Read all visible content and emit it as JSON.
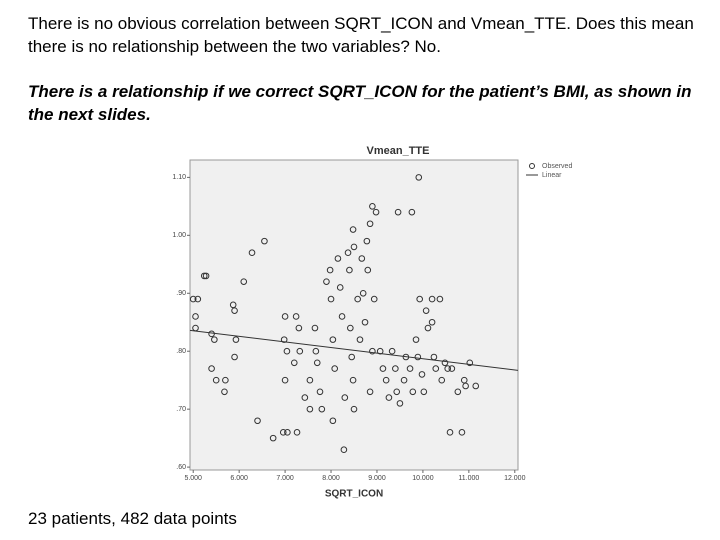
{
  "slide": {
    "paragraphs": [
      "There is no obvious correlation between SQRT_ICON and Vmean_TTE. Does this mean there is no relationship between the two variables? No.",
      "There is a relationship if we correct SQRT_ICON for the patient’s BMI, as shown in the next slides."
    ],
    "footer": "23 patients, 482 data points"
  },
  "chart_data": {
    "type": "scatter",
    "title": "Vmean_TTE",
    "x_label": "SQRT_ICON",
    "xlim": [
      4.93,
      12.07
    ],
    "ylim": [
      0.595,
      1.13
    ],
    "xticks": [
      {
        "value": 5,
        "label": "5.000"
      },
      {
        "value": 6,
        "label": "6.000"
      },
      {
        "value": 7,
        "label": "7.000"
      },
      {
        "value": 8,
        "label": "8.000"
      },
      {
        "value": 9,
        "label": "9.000"
      },
      {
        "value": 10,
        "label": "10.000"
      },
      {
        "value": 11,
        "label": "11.000"
      },
      {
        "value": 12,
        "label": "12.000"
      }
    ],
    "yticks": [
      {
        "value": 0.6,
        "label": ".60"
      },
      {
        "value": 0.7,
        "label": ".70"
      },
      {
        "value": 0.8,
        "label": ".80"
      },
      {
        "value": 0.9,
        "label": ".90"
      },
      {
        "value": 1.0,
        "label": "1.00"
      },
      {
        "value": 1.1,
        "label": "1.10"
      }
    ],
    "legend": "top-right",
    "series": [
      {
        "name": "Observed",
        "style": "markers",
        "color": "#333333",
        "x": [
          5.0,
          5.1,
          5.05,
          5.05,
          5.24,
          5.28,
          5.4,
          5.46,
          5.4,
          5.5,
          5.7,
          5.68,
          5.87,
          5.9,
          5.93,
          5.9,
          6.1,
          6.28,
          6.55,
          6.4,
          6.74,
          6.96,
          7.05,
          7.26,
          7.0,
          6.98,
          7.04,
          7.0,
          7.24,
          7.3,
          7.2,
          7.32,
          7.43,
          7.54,
          7.54,
          7.65,
          7.67,
          7.7,
          7.76,
          7.8,
          7.9,
          7.98,
          8.0,
          8.04,
          8.08,
          8.04,
          8.15,
          8.2,
          8.24,
          8.3,
          8.28,
          8.37,
          8.4,
          8.42,
          8.45,
          8.48,
          8.5,
          8.48,
          8.5,
          8.58,
          8.63,
          8.67,
          8.7,
          8.74,
          8.78,
          8.8,
          8.85,
          8.9,
          8.98,
          8.94,
          8.9,
          8.85,
          9.07,
          9.13,
          9.2,
          9.26,
          9.33,
          9.4,
          9.43,
          9.5,
          9.46,
          9.59,
          9.63,
          9.72,
          9.76,
          9.78,
          9.85,
          9.89,
          9.93,
          9.91,
          9.98,
          10.02,
          10.07,
          10.11,
          10.2,
          10.2,
          10.24,
          10.28,
          10.37,
          10.41,
          10.48,
          10.54,
          10.63,
          10.59,
          10.85,
          10.9,
          10.93,
          11.02,
          11.15,
          10.76
        ],
        "values": [
          0.89,
          0.89,
          0.86,
          0.84,
          0.93,
          0.93,
          0.83,
          0.82,
          0.77,
          0.75,
          0.75,
          0.73,
          0.88,
          0.87,
          0.82,
          0.79,
          0.92,
          0.97,
          0.99,
          0.68,
          0.65,
          0.66,
          0.66,
          0.66,
          0.86,
          0.82,
          0.8,
          0.75,
          0.86,
          0.84,
          0.78,
          0.8,
          0.72,
          0.75,
          0.7,
          0.84,
          0.8,
          0.78,
          0.73,
          0.7,
          0.92,
          0.94,
          0.89,
          0.82,
          0.77,
          0.68,
          0.96,
          0.91,
          0.86,
          0.72,
          0.63,
          0.97,
          0.94,
          0.84,
          0.79,
          0.75,
          0.7,
          1.01,
          0.98,
          0.89,
          0.82,
          0.96,
          0.9,
          0.85,
          0.99,
          0.94,
          1.02,
          1.05,
          1.04,
          0.89,
          0.8,
          0.73,
          0.8,
          0.77,
          0.75,
          0.72,
          0.8,
          0.77,
          0.73,
          0.71,
          1.04,
          0.75,
          0.79,
          0.77,
          1.04,
          0.73,
          0.82,
          0.79,
          0.89,
          1.1,
          0.76,
          0.73,
          0.87,
          0.84,
          0.89,
          0.85,
          0.79,
          0.77,
          0.89,
          0.75,
          0.78,
          0.77,
          0.77,
          0.66,
          0.66,
          0.75,
          0.74,
          0.78,
          0.74,
          0.73
        ]
      },
      {
        "name": "Linear",
        "style": "line",
        "color": "#333333",
        "x": [
          4.93,
          12.07
        ],
        "values": [
          0.836,
          0.767
        ]
      }
    ]
  }
}
